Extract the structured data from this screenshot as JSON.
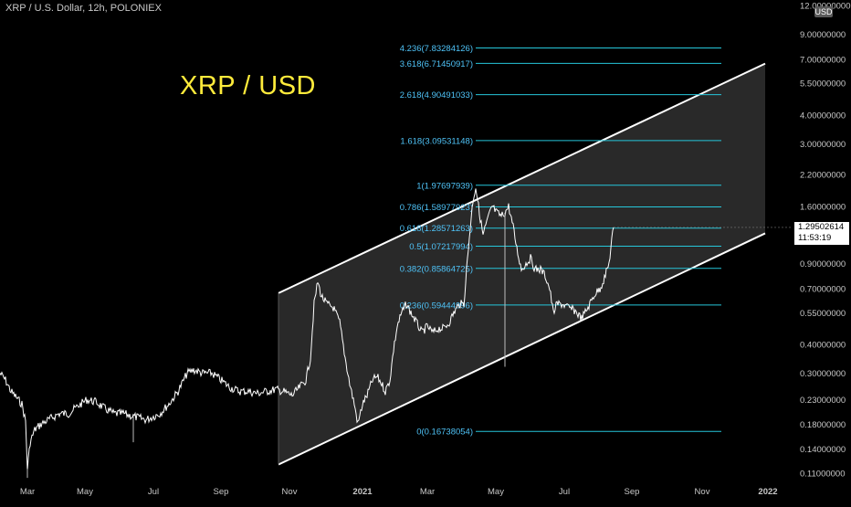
{
  "header": {
    "symbol_line": "XRP / U.S. Dollar, 12h, POLONIEX",
    "currency_badge": "USD"
  },
  "overlay_title": "XRP / USD",
  "price_label": {
    "price": "1.29502614",
    "countdown": "11:53:19"
  },
  "colors": {
    "background": "#000000",
    "price_line": "#ffffff",
    "channel_fill": "#2e2e2e",
    "channel_border": "#ffffff",
    "fib_line": "#26c6da",
    "fib_text": "#4fc3f7",
    "title": "#ffeb3b",
    "axis_text": "#c8c8c8"
  },
  "chart_data": {
    "type": "line",
    "scale": "log",
    "ylim": [
      0.105,
      12.0
    ],
    "x_tick_labels": [
      "Mar",
      "May",
      "Jul",
      "Sep",
      "Nov",
      "2021",
      "Mar",
      "May",
      "Jul",
      "Sep",
      "Nov",
      "2022"
    ],
    "y_tick_labels": [
      "12.00000000",
      "9.00000000",
      "7.00000000",
      "5.50000000",
      "4.00000000",
      "3.00000000",
      "2.20000000",
      "1.60000000",
      "0.90000000",
      "0.70000000",
      "0.55000000",
      "0.40000000",
      "0.30000000",
      "0.23000000",
      "0.18000000",
      "0.14000000",
      "0.11000000"
    ],
    "y_tick_values": [
      12.0,
      9.0,
      7.0,
      5.5,
      4.0,
      3.0,
      2.2,
      1.6,
      0.9,
      0.7,
      0.55,
      0.4,
      0.3,
      0.23,
      0.18,
      0.14,
      0.11
    ],
    "price_series": [
      [
        0,
        0.3
      ],
      [
        6,
        0.28
      ],
      [
        12,
        0.25
      ],
      [
        18,
        0.235
      ],
      [
        24,
        0.22
      ],
      [
        28,
        0.185
      ],
      [
        30,
        0.115
      ],
      [
        33,
        0.15
      ],
      [
        38,
        0.17
      ],
      [
        45,
        0.18
      ],
      [
        55,
        0.19
      ],
      [
        65,
        0.2
      ],
      [
        75,
        0.2
      ],
      [
        85,
        0.215
      ],
      [
        95,
        0.23
      ],
      [
        105,
        0.225
      ],
      [
        115,
        0.21
      ],
      [
        125,
        0.2
      ],
      [
        135,
        0.2
      ],
      [
        145,
        0.195
      ],
      [
        160,
        0.188
      ],
      [
        175,
        0.2
      ],
      [
        185,
        0.22
      ],
      [
        195,
        0.25
      ],
      [
        205,
        0.3
      ],
      [
        212,
        0.31
      ],
      [
        222,
        0.3
      ],
      [
        232,
        0.3
      ],
      [
        242,
        0.28
      ],
      [
        252,
        0.26
      ],
      [
        262,
        0.25
      ],
      [
        272,
        0.25
      ],
      [
        282,
        0.245
      ],
      [
        292,
        0.25
      ],
      [
        302,
        0.255
      ],
      [
        310,
        0.25
      ],
      [
        320,
        0.24
      ],
      [
        328,
        0.26
      ],
      [
        335,
        0.28
      ],
      [
        340,
        0.35
      ],
      [
        344,
        0.6
      ],
      [
        348,
        0.75
      ],
      [
        352,
        0.65
      ],
      [
        358,
        0.6
      ],
      [
        365,
        0.58
      ],
      [
        372,
        0.5
      ],
      [
        378,
        0.35
      ],
      [
        383,
        0.27
      ],
      [
        388,
        0.22
      ],
      [
        392,
        0.18
      ],
      [
        397,
        0.22
      ],
      [
        402,
        0.24
      ],
      [
        408,
        0.28
      ],
      [
        413,
        0.29
      ],
      [
        418,
        0.27
      ],
      [
        422,
        0.25
      ],
      [
        427,
        0.28
      ],
      [
        431,
        0.38
      ],
      [
        435,
        0.48
      ],
      [
        440,
        0.55
      ],
      [
        445,
        0.6
      ],
      [
        450,
        0.55
      ],
      [
        456,
        0.5
      ],
      [
        462,
        0.45
      ],
      [
        468,
        0.48
      ],
      [
        474,
        0.45
      ],
      [
        480,
        0.47
      ],
      [
        486,
        0.47
      ],
      [
        492,
        0.5
      ],
      [
        497,
        0.55
      ],
      [
        503,
        0.6
      ],
      [
        508,
        0.6
      ],
      [
        511,
        0.85
      ],
      [
        515,
        1.3
      ],
      [
        518,
        1.7
      ],
      [
        521,
        1.95
      ],
      [
        525,
        1.5
      ],
      [
        529,
        1.2
      ],
      [
        534,
        1.4
      ],
      [
        539,
        1.6
      ],
      [
        544,
        1.5
      ],
      [
        549,
        1.45
      ],
      [
        553,
        1.5
      ],
      [
        557,
        1.6
      ],
      [
        562,
        1.3
      ],
      [
        566,
        1.05
      ],
      [
        571,
        0.85
      ],
      [
        576,
        0.9
      ],
      [
        581,
        0.95
      ],
      [
        586,
        0.85
      ],
      [
        592,
        0.85
      ],
      [
        597,
        0.8
      ],
      [
        602,
        0.7
      ],
      [
        606,
        0.55
      ],
      [
        610,
        0.6
      ],
      [
        616,
        0.6
      ],
      [
        622,
        0.58
      ],
      [
        630,
        0.56
      ],
      [
        637,
        0.52
      ],
      [
        644,
        0.58
      ],
      [
        651,
        0.66
      ],
      [
        657,
        0.7
      ],
      [
        662,
        0.78
      ],
      [
        667,
        0.9
      ],
      [
        670,
        1.15
      ],
      [
        672,
        1.295
      ]
    ],
    "spikes": [
      {
        "x": 30,
        "low": 0.105
      },
      {
        "x": 146,
        "low": 0.15
      },
      {
        "x": 553,
        "low": 0.32
      }
    ],
    "channel": {
      "upper_line": [
        [
          305,
          0.67
        ],
        [
          838,
          6.7
        ]
      ],
      "lower_line": [
        [
          305,
          0.12
        ],
        [
          838,
          1.22
        ]
      ]
    },
    "fib_levels": [
      {
        "ratio": "4.236",
        "value": 7.83284126,
        "label": "4.236(7.83284126)"
      },
      {
        "ratio": "3.618",
        "value": 6.71450917,
        "label": "3.618(6.71450917)"
      },
      {
        "ratio": "2.618",
        "value": 4.90491033,
        "label": "2.618(4.90491033)"
      },
      {
        "ratio": "1.618",
        "value": 3.09531148,
        "label": "1.618(3.09531148)"
      },
      {
        "ratio": "1",
        "value": 1.97697939,
        "label": "1(1.97697939)"
      },
      {
        "ratio": "0.786",
        "value": 1.58977923,
        "label": "0.786(1.58977923)"
      },
      {
        "ratio": "0.618",
        "value": 1.28571263,
        "label": "0.618(1.28571263)"
      },
      {
        "ratio": "0.5",
        "value": 1.07217994,
        "label": "0.5(1.07217994)"
      },
      {
        "ratio": "0.382",
        "value": 0.85864725,
        "label": "0.382(0.85864725)"
      },
      {
        "ratio": "0.236",
        "value": 0.59444996,
        "label": "0.236(0.59444996)"
      },
      {
        "ratio": "0",
        "value": 0.16738054,
        "label": "0(0.16738054)"
      }
    ]
  }
}
